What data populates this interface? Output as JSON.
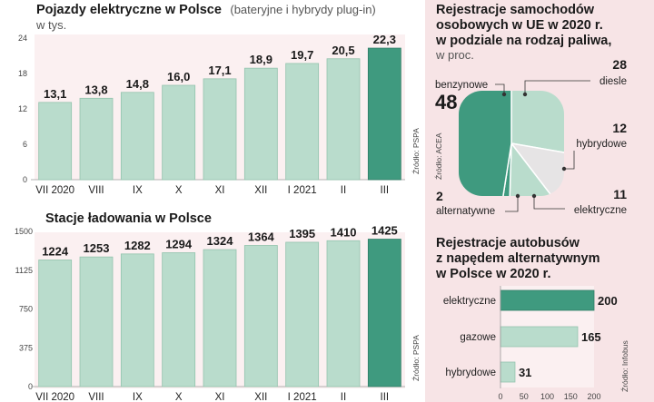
{
  "colors": {
    "bar": "#b9dccc",
    "bar_stroke": "#93c3ad",
    "highlight": "#3f9a7f",
    "highlight_stroke": "#2f7c66",
    "pink_bg": "#f7e4e6",
    "pink_bg_light": "#fbf0f1",
    "hybrid": "#e6e4e5",
    "grid": "#e8c8cd"
  },
  "chart_data": [
    {
      "id": "ev",
      "type": "bar",
      "title": "Pojazdy elektryczne w Polsce",
      "subtitle": "(bateryjne i hybrydy plug-in)",
      "unit": "w tys.",
      "categories": [
        "VII 2020",
        "VIII",
        "IX",
        "X",
        "XI",
        "XII",
        "I 2021",
        "II",
        "III"
      ],
      "values": [
        13.1,
        13.8,
        14.8,
        16.0,
        17.1,
        18.9,
        19.7,
        20.5,
        22.3
      ],
      "value_labels": [
        "13,1",
        "13,8",
        "14,8",
        "16,0",
        "17,1",
        "18,9",
        "19,7",
        "20,5",
        "22,3"
      ],
      "ylim": [
        0,
        24
      ],
      "yticks": [
        0,
        6,
        12,
        18,
        24
      ],
      "highlight_index": 8,
      "source": "Źródło: PSPA",
      "grid": false
    },
    {
      "id": "stations",
      "type": "bar",
      "title": "Stacje ładowania w Polsce",
      "categories": [
        "VII 2020",
        "VIII",
        "IX",
        "X",
        "XI",
        "XII",
        "I 2021",
        "II",
        "III"
      ],
      "values": [
        1224,
        1253,
        1282,
        1294,
        1324,
        1364,
        1395,
        1410,
        1425
      ],
      "value_labels": [
        "1224",
        "1253",
        "1282",
        "1294",
        "1324",
        "1364",
        "1395",
        "1410",
        "1425"
      ],
      "ylim": [
        0,
        1500
      ],
      "yticks": [
        0,
        375,
        750,
        1125,
        1500
      ],
      "highlight_index": 8,
      "source": "Źródło: PSPA",
      "grid": false
    },
    {
      "id": "eu_fuel",
      "type": "pie",
      "title_lines": [
        "Rejestracje samochodów",
        "osobowych w UE w 2020 r.",
        "w podziale na rodzaj paliwa,"
      ],
      "unit": "w proc.",
      "slices": [
        {
          "name": "benzynowe",
          "value": 48,
          "label": "48"
        },
        {
          "name": "diesle",
          "value": 28,
          "label": "28"
        },
        {
          "name": "hybrydowe",
          "value": 12,
          "label": "12"
        },
        {
          "name": "elektryczne",
          "value": 11,
          "label": "11"
        },
        {
          "name": "alternatywne",
          "value": 2,
          "label": "2"
        }
      ],
      "source": "Źródło: ACEA"
    },
    {
      "id": "buses",
      "type": "bar",
      "orientation": "horizontal",
      "title_lines": [
        "Rejestracje autobusów",
        "z napędem alternatywnym",
        "w Polsce w 2020 r."
      ],
      "categories": [
        "elektryczne",
        "gazowe",
        "hybrydowe"
      ],
      "values": [
        200,
        165,
        31
      ],
      "value_labels": [
        "200",
        "165",
        "31"
      ],
      "xlim": [
        0,
        200
      ],
      "xticks": [
        0,
        50,
        100,
        150,
        200
      ],
      "highlight_index": 0,
      "source": "Źródło: Infobus"
    }
  ]
}
